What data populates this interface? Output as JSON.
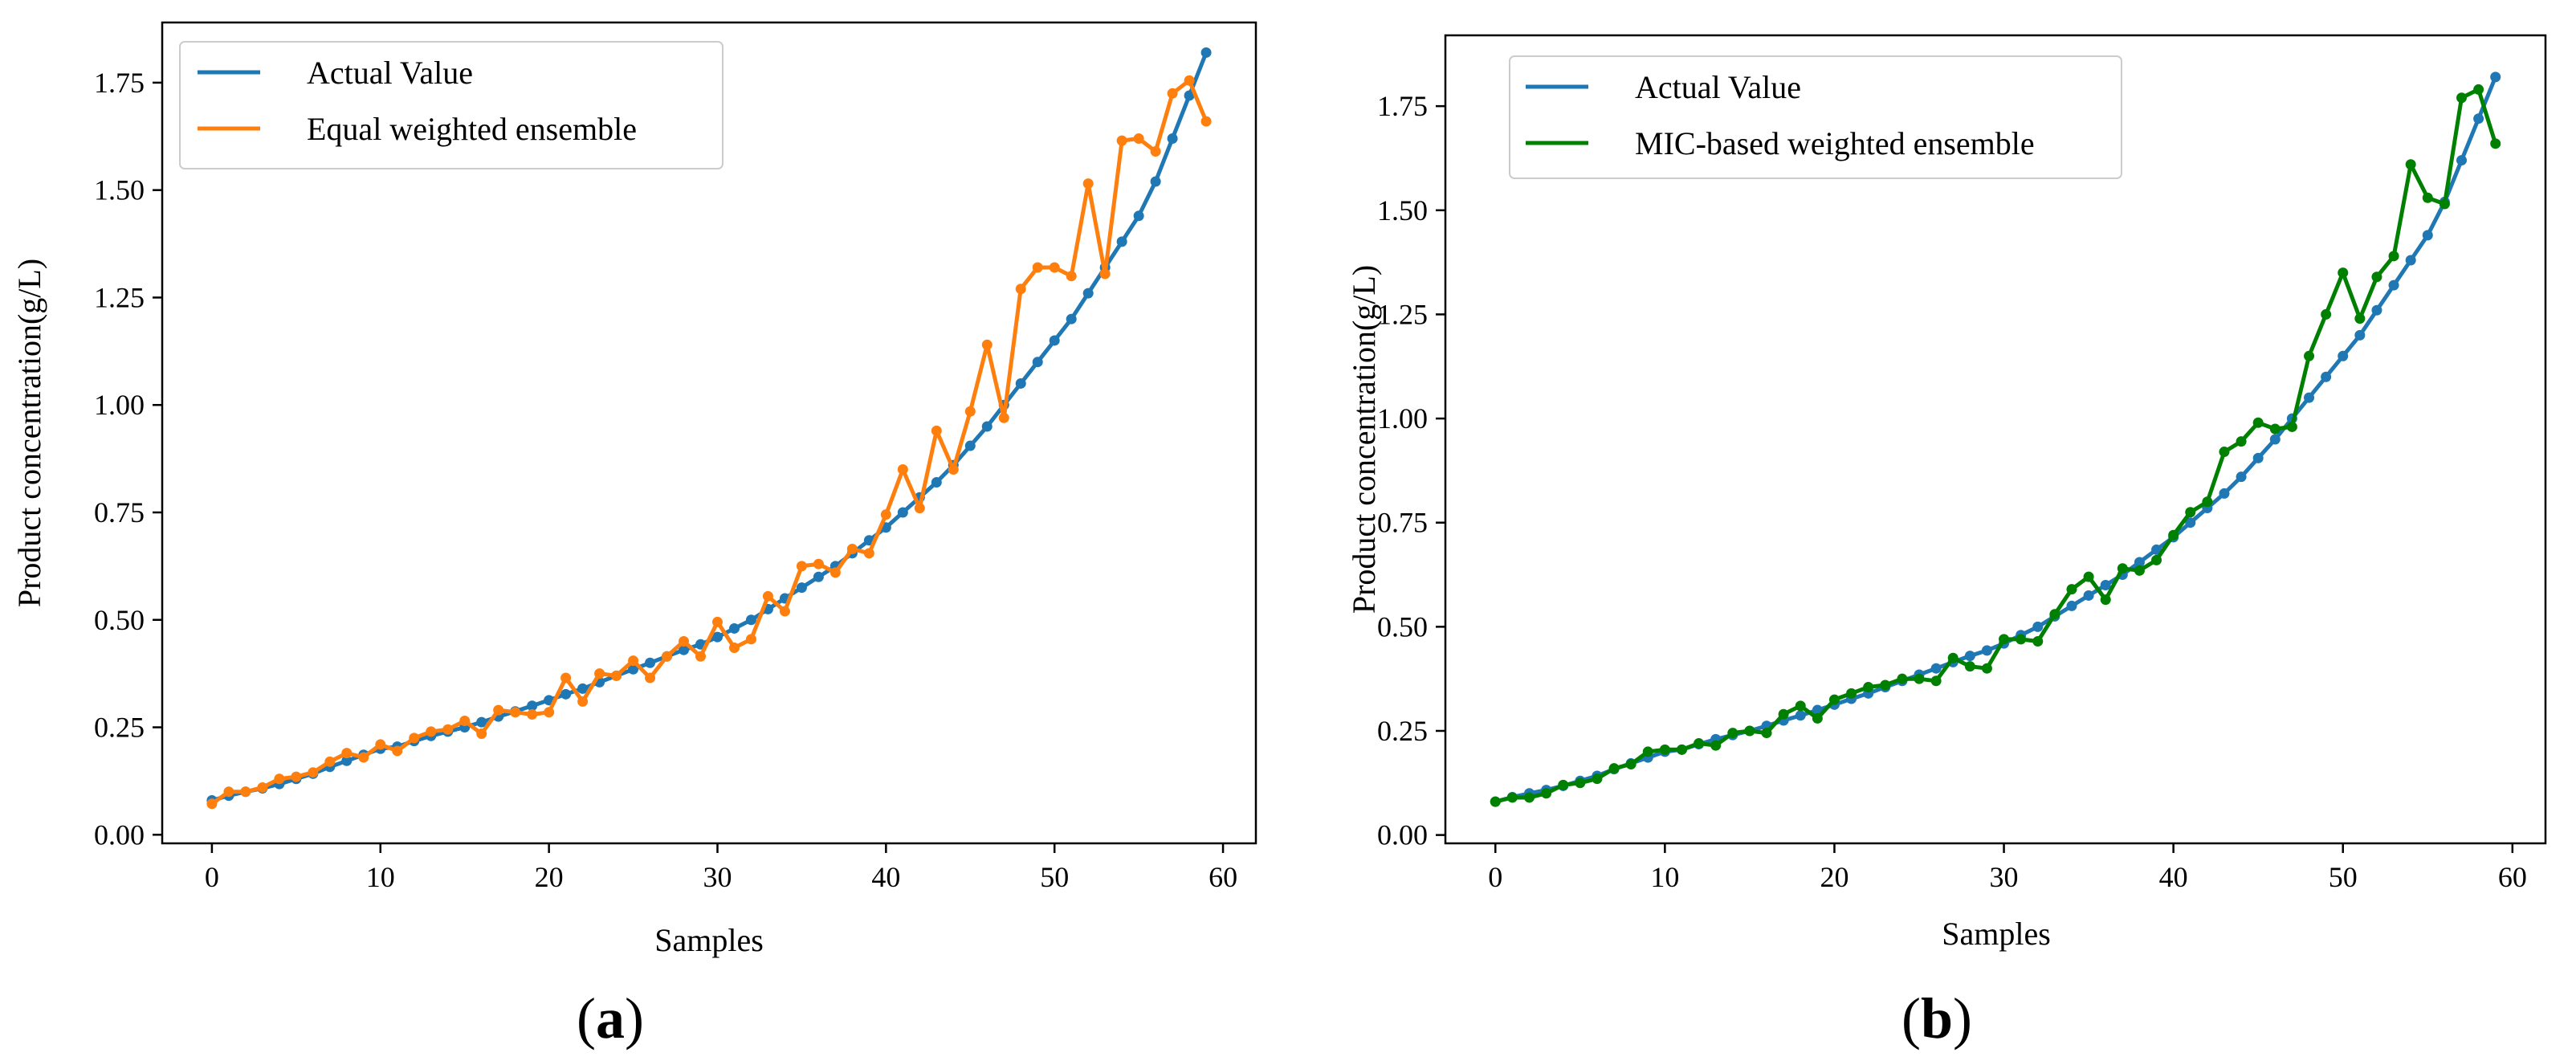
{
  "chart_data": [
    {
      "type": "line",
      "panel_label": "a",
      "xlabel": "Samples",
      "ylabel": "Product concentration(g/L)",
      "xlim": [
        -2.95,
        61.95
      ],
      "ylim": [
        -0.02,
        1.89
      ],
      "xticks": [
        0,
        10,
        20,
        30,
        40,
        50,
        60
      ],
      "yticks": [
        0.0,
        0.25,
        0.5,
        0.75,
        1.0,
        1.25,
        1.5,
        1.75
      ],
      "ytick_labels": [
        "0.00",
        "0.25",
        "0.50",
        "0.75",
        "1.00",
        "1.25",
        "1.50",
        "1.75"
      ],
      "xtick_labels": [
        "0",
        "10",
        "20",
        "30",
        "40",
        "50",
        "60"
      ],
      "legend_position": "top-left",
      "series": [
        {
          "name": "Actual Value",
          "color": "#1f77b4",
          "values": [
            0.08,
            0.091,
            0.1,
            0.108,
            0.118,
            0.13,
            0.142,
            0.158,
            0.172,
            0.186,
            0.2,
            0.205,
            0.218,
            0.23,
            0.24,
            0.25,
            0.262,
            0.275,
            0.287,
            0.3,
            0.313,
            0.327,
            0.34,
            0.355,
            0.37,
            0.385,
            0.4,
            0.415,
            0.43,
            0.443,
            0.46,
            0.48,
            0.5,
            0.525,
            0.55,
            0.575,
            0.6,
            0.625,
            0.655,
            0.685,
            0.715,
            0.75,
            0.785,
            0.82,
            0.86,
            0.905,
            0.95,
            1.0,
            1.05,
            1.1,
            1.15,
            1.2,
            1.26,
            1.32,
            1.38,
            1.44,
            1.52,
            1.62,
            1.72,
            1.82
          ]
        },
        {
          "name": "Equal weighted ensemble",
          "color": "#ff7f0e",
          "values": [
            0.072,
            0.1,
            0.1,
            0.11,
            0.13,
            0.135,
            0.145,
            0.17,
            0.19,
            0.18,
            0.21,
            0.195,
            0.225,
            0.24,
            0.245,
            0.265,
            0.235,
            0.29,
            0.285,
            0.28,
            0.285,
            0.365,
            0.31,
            0.375,
            0.37,
            0.405,
            0.365,
            0.415,
            0.45,
            0.415,
            0.495,
            0.435,
            0.455,
            0.555,
            0.52,
            0.625,
            0.63,
            0.61,
            0.665,
            0.655,
            0.745,
            0.85,
            0.76,
            0.94,
            0.85,
            0.985,
            1.14,
            0.97,
            1.27,
            1.32,
            1.32,
            1.3,
            1.515,
            1.305,
            1.615,
            1.62,
            1.59,
            1.725,
            1.755,
            1.66
          ]
        }
      ]
    },
    {
      "type": "line",
      "panel_label": "b",
      "xlabel": "Samples",
      "ylabel": "Product concentration(g/L)",
      "xlim": [
        -2.95,
        61.95
      ],
      "ylim": [
        -0.02,
        1.92
      ],
      "xticks": [
        0,
        10,
        20,
        30,
        40,
        50,
        60
      ],
      "yticks": [
        0.0,
        0.25,
        0.5,
        0.75,
        1.0,
        1.25,
        1.5,
        1.75
      ],
      "ytick_labels": [
        "0.00",
        "0.25",
        "0.50",
        "0.75",
        "1.00",
        "1.25",
        "1.50",
        "1.75"
      ],
      "xtick_labels": [
        "0",
        "10",
        "20",
        "30",
        "40",
        "50",
        "60"
      ],
      "legend_position": "top-left",
      "series": [
        {
          "name": "Actual Value",
          "color": "#1f77b4",
          "values": [
            0.08,
            0.091,
            0.1,
            0.108,
            0.118,
            0.13,
            0.142,
            0.158,
            0.172,
            0.186,
            0.2,
            0.205,
            0.218,
            0.23,
            0.24,
            0.25,
            0.262,
            0.275,
            0.287,
            0.3,
            0.313,
            0.327,
            0.34,
            0.355,
            0.37,
            0.385,
            0.4,
            0.415,
            0.43,
            0.443,
            0.46,
            0.48,
            0.5,
            0.525,
            0.55,
            0.575,
            0.6,
            0.625,
            0.655,
            0.685,
            0.715,
            0.75,
            0.785,
            0.82,
            0.86,
            0.905,
            0.95,
            1.0,
            1.05,
            1.1,
            1.15,
            1.2,
            1.26,
            1.32,
            1.38,
            1.44,
            1.52,
            1.62,
            1.72,
            1.82
          ]
        },
        {
          "name": "MIC-based weighted ensemble",
          "color": "#008000",
          "values": [
            0.08,
            0.09,
            0.09,
            0.1,
            0.12,
            0.125,
            0.135,
            0.16,
            0.17,
            0.2,
            0.205,
            0.205,
            0.22,
            0.215,
            0.245,
            0.25,
            0.245,
            0.29,
            0.31,
            0.28,
            0.325,
            0.34,
            0.355,
            0.36,
            0.375,
            0.375,
            0.37,
            0.425,
            0.405,
            0.4,
            0.47,
            0.47,
            0.465,
            0.53,
            0.59,
            0.62,
            0.565,
            0.64,
            0.635,
            0.66,
            0.72,
            0.775,
            0.8,
            0.92,
            0.945,
            0.99,
            0.975,
            0.98,
            1.15,
            1.25,
            1.35,
            1.24,
            1.34,
            1.39,
            1.61,
            1.53,
            1.515,
            1.77,
            1.79,
            1.66
          ]
        }
      ]
    }
  ]
}
